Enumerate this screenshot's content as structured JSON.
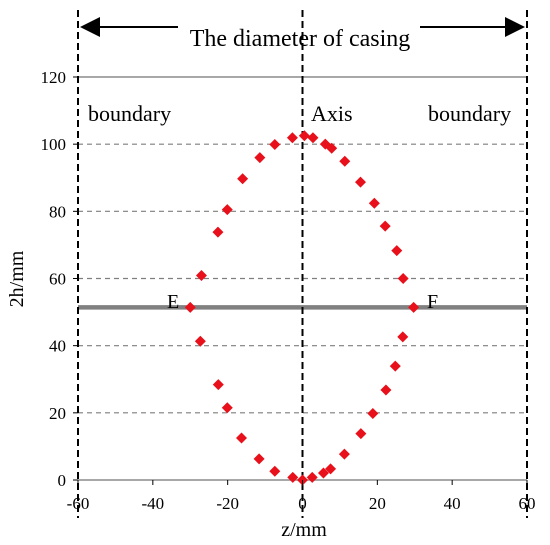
{
  "chart_data": {
    "type": "scatter",
    "title": "",
    "xlabel": "z/mm",
    "ylabel": "2h/mm",
    "xlim": [
      -60,
      60
    ],
    "ylim": [
      0,
      120
    ],
    "x_ticks": [
      -60,
      -40,
      -20,
      0,
      20,
      40,
      60
    ],
    "y_ticks": [
      0,
      20,
      40,
      60,
      80,
      100,
      120
    ],
    "x_tick_labels": [
      "-60",
      "-40",
      "-20",
      "0",
      "20",
      "40",
      "60"
    ],
    "y_tick_labels": [
      "0",
      "20",
      "40",
      "60",
      "80",
      "100",
      "120"
    ],
    "grid": "horizontal dashed",
    "marker": "diamond",
    "marker_color": "#e8101a",
    "series": [
      {
        "points": [
          {
            "x": -2.7,
            "y": 101.9
          },
          {
            "x": 0.5,
            "y": 102.5
          },
          {
            "x": 2.8,
            "y": 101.9
          },
          {
            "x": -7.4,
            "y": 99.9
          },
          {
            "x": 6.1,
            "y": 100.0
          },
          {
            "x": 7.8,
            "y": 98.8
          },
          {
            "x": -11.4,
            "y": 96.0
          },
          {
            "x": 11.3,
            "y": 94.9
          },
          {
            "x": -16.0,
            "y": 89.7
          },
          {
            "x": 15.5,
            "y": 88.7
          },
          {
            "x": -20.1,
            "y": 80.5
          },
          {
            "x": 19.2,
            "y": 82.4
          },
          {
            "x": 22.1,
            "y": 75.6
          },
          {
            "x": -22.6,
            "y": 73.8
          },
          {
            "x": 25.2,
            "y": 68.3
          },
          {
            "x": -27.0,
            "y": 60.9
          },
          {
            "x": 26.9,
            "y": 60.0
          },
          {
            "x": -30.0,
            "y": 51.4
          },
          {
            "x": 29.7,
            "y": 51.4
          },
          {
            "x": 26.8,
            "y": 42.6
          },
          {
            "x": -27.3,
            "y": 41.3
          },
          {
            "x": 24.8,
            "y": 33.9
          },
          {
            "x": 22.3,
            "y": 26.8
          },
          {
            "x": -22.5,
            "y": 28.4
          },
          {
            "x": -20.1,
            "y": 21.5
          },
          {
            "x": 18.8,
            "y": 19.8
          },
          {
            "x": 15.6,
            "y": 13.8
          },
          {
            "x": -16.3,
            "y": 12.5
          },
          {
            "x": 11.2,
            "y": 7.7
          },
          {
            "x": -11.6,
            "y": 6.3
          },
          {
            "x": 7.5,
            "y": 3.3
          },
          {
            "x": 5.6,
            "y": 2.1
          },
          {
            "x": -7.4,
            "y": 2.6
          },
          {
            "x": -2.6,
            "y": 0.8
          },
          {
            "x": 2.6,
            "y": 0.8
          },
          {
            "x": 0.0,
            "y": 0.0
          }
        ]
      }
    ],
    "reference_lines": {
      "boundary_x": [
        -60,
        60
      ],
      "axis_x": 0,
      "ef_line_y": 51.4,
      "top_line_y": 120
    },
    "annotations": {
      "diameter": "The diameter of casing",
      "boundary_left": "boundary",
      "boundary_right": "boundary",
      "axis": "Axis",
      "point_e": "E",
      "point_f": "F"
    }
  }
}
